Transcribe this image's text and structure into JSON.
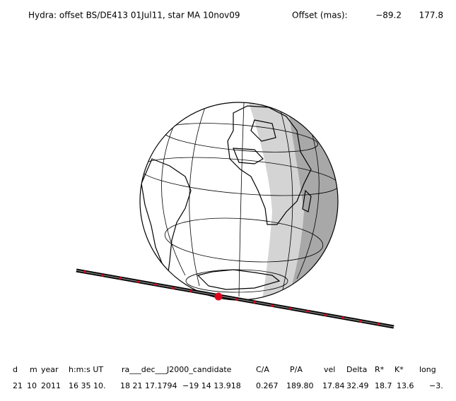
{
  "header": {
    "title": "Hydra: offset BS/DE413 01Jul11, star MA 10nov09",
    "offset_label": "Offset (mas):",
    "offsets": [
      "−89.2",
      "177.8"
    ]
  },
  "table": {
    "headers": [
      "d",
      "m",
      "year",
      "h:m:s UT",
      "ra___dec___J2000_candidate",
      "C/A",
      "P/A",
      "vel",
      "Delta",
      "R*",
      "K*",
      "long"
    ],
    "row": [
      "21",
      "10",
      "2011",
      "16 35 10.",
      "18 21 17.1794",
      "−19 14  13.918",
      "0.267",
      "189.80",
      "17.84",
      "32.49",
      "18.7",
      "13.6",
      "−3."
    ]
  }
}
